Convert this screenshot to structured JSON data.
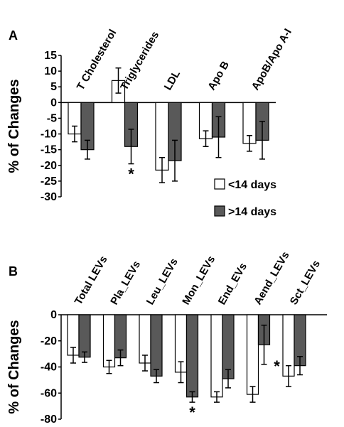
{
  "chart_data": [
    {
      "type": "bar",
      "panel": "A",
      "title": "",
      "xlabel": "",
      "ylabel": "% of Changes",
      "ylim": [
        -30,
        15
      ],
      "yticks": [
        15,
        10,
        5,
        0,
        -5,
        -10,
        -15,
        -20,
        -25,
        -30
      ],
      "categories": [
        "T Cholesterol",
        "Triglycerides",
        "LDL",
        "Apo B",
        "ApoB/Apo A-I"
      ],
      "series": [
        {
          "name": "<14 days",
          "color": "#ffffff",
          "values": [
            -10,
            7,
            -21.5,
            -11.5,
            -13
          ],
          "errors": [
            2.5,
            4,
            4,
            2.5,
            2.5
          ]
        },
        {
          "name": ">14 days",
          "color": "#595959",
          "values": [
            -15,
            -14,
            -18.5,
            -11,
            -12
          ],
          "errors": [
            3,
            5.5,
            6.5,
            6.5,
            6
          ]
        }
      ],
      "annotations": [
        {
          "category": "Triglycerides",
          "series": ">14 days",
          "text": "*"
        }
      ],
      "legend": {
        "placement": "bottom-right",
        "entries": [
          "<14 days",
          ">14 days"
        ]
      }
    },
    {
      "type": "bar",
      "panel": "B",
      "title": "",
      "xlabel": "",
      "ylabel": "% of Changes",
      "ylim": [
        -80,
        0
      ],
      "yticks": [
        0,
        -20,
        -40,
        -60,
        -80
      ],
      "categories": [
        "Total LEVs",
        "Pla_LEVs",
        "Leu_LEVs",
        "Mon_LEVs",
        "End_EVs",
        "Aend_LEVs",
        "Sct_LEVs"
      ],
      "series": [
        {
          "name": "<14 days",
          "color": "#ffffff",
          "values": [
            -31,
            -40,
            -37,
            -44,
            -63,
            -61,
            -47
          ],
          "errors": [
            6,
            5,
            6,
            8,
            4,
            6,
            8
          ]
        },
        {
          "name": ">14 days",
          "color": "#595959",
          "values": [
            -32.5,
            -33,
            -47,
            -63,
            -49,
            -23,
            -39
          ],
          "errors": [
            4,
            6,
            5,
            4,
            7,
            15,
            7
          ]
        }
      ],
      "annotations": [
        {
          "category": "Mon_LEVs",
          "series": ">14 days",
          "text": "*"
        },
        {
          "category": "Aend_LEVs",
          "series": ">14 days",
          "text": "*"
        }
      ]
    }
  ]
}
